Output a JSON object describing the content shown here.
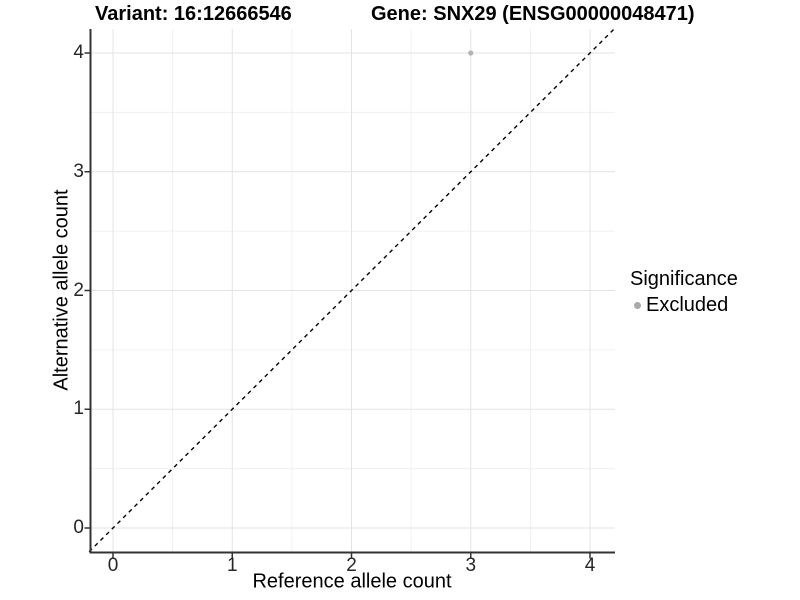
{
  "header": {
    "variant_title": "Variant: 16:12666546",
    "gene_title": "Gene: SNX29 (ENSG00000048471)"
  },
  "chart_data": {
    "type": "scatter",
    "title": "Variant: 16:12666546    Gene: SNX29 (ENSG00000048471)",
    "xlabel": "Reference allele count",
    "ylabel": "Alternative allele count",
    "xlim": [
      -0.2,
      4.2
    ],
    "ylim": [
      -0.2,
      4.2
    ],
    "xticks": [
      0,
      1,
      2,
      3,
      4
    ],
    "yticks": [
      0,
      1,
      2,
      3,
      4
    ],
    "x_minor": [
      0.5,
      1.5,
      2.5,
      3.5
    ],
    "y_minor": [
      0.5,
      1.5,
      2.5,
      3.5
    ],
    "grid": "major-and-minor",
    "series": [
      {
        "name": "Excluded",
        "color": "#b3b3b3",
        "points": [
          {
            "x": 3,
            "y": 4
          }
        ]
      }
    ],
    "reference_line": {
      "type": "identity",
      "slope": 1,
      "intercept": 0,
      "style": "dashed",
      "color": "#000000"
    },
    "legend": {
      "title": "Significance",
      "position": "right",
      "items": [
        {
          "label": "Excluded",
          "color": "#a9a9a9"
        }
      ]
    }
  },
  "colors": {
    "background": "#ffffff",
    "grid_major": "#e3e3e3",
    "grid_minor": "#f0f0f0",
    "axis_line": "#333333",
    "tick_mark": "#333333",
    "text": "#000000",
    "point": "#b3b3b3"
  }
}
